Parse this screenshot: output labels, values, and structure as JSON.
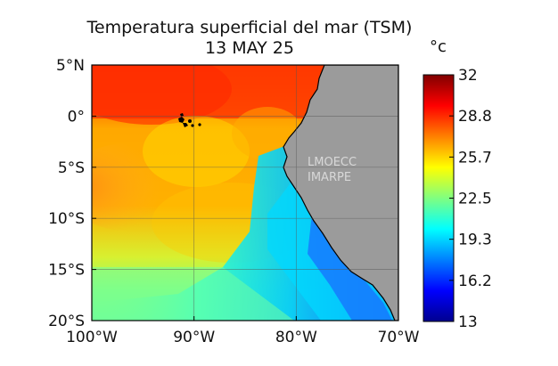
{
  "title": "Temperatura superficial del mar (TSM)",
  "subtitle": "13 MAY 25",
  "watermark": [
    "LMOECC",
    "IMARPE"
  ],
  "map": {
    "lon_range": [
      -100,
      -70
    ],
    "lat_range": [
      -20,
      5
    ],
    "lon_ticks": [
      {
        "value": -100,
        "label": "100°W"
      },
      {
        "value": -90,
        "label": "90°W"
      },
      {
        "value": -80,
        "label": "80°W"
      },
      {
        "value": -70,
        "label": "70°W"
      }
    ],
    "lat_ticks": [
      {
        "value": 5,
        "label": "5°N"
      },
      {
        "value": 0,
        "label": "0°"
      },
      {
        "value": -5,
        "label": "5°S"
      },
      {
        "value": -10,
        "label": "10°S"
      },
      {
        "value": -15,
        "label": "15°S"
      },
      {
        "value": -20,
        "label": "20°S"
      }
    ],
    "land_color": "#9b9b9b",
    "grid": true
  },
  "colorbar": {
    "unit": "°c",
    "min": 13,
    "max": 32,
    "ticks": [
      "32",
      "28.8",
      "25.7",
      "22.5",
      "19.3",
      "16.2",
      "13"
    ],
    "colormap": [
      "#00008f",
      "#0000ff",
      "#0080ff",
      "#00ffff",
      "#80ff80",
      "#ffff00",
      "#ff8000",
      "#ff0000",
      "#800000"
    ]
  }
}
